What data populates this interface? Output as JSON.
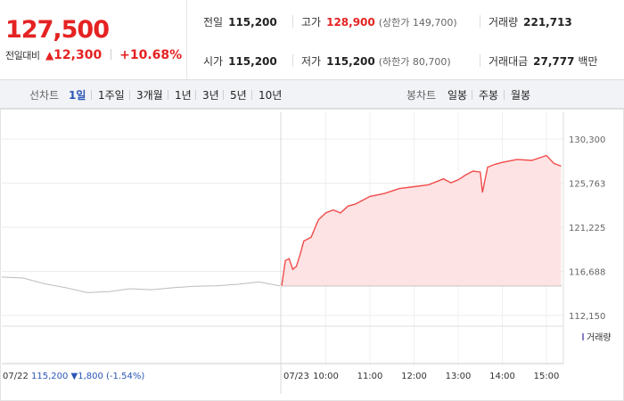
{
  "header": {
    "current_price": "127,500",
    "change_label": "전일대비",
    "change_arrow": "▲",
    "change_amount": "12,300",
    "change_rate": "+10.68%",
    "stats": {
      "prev_close": {
        "label": "전일",
        "value": "115,200"
      },
      "high": {
        "label": "고가",
        "value": "128,900",
        "sub": "(상한가 149,700)"
      },
      "volume": {
        "label": "거래량",
        "value": "221,713"
      },
      "open": {
        "label": "시가",
        "value": "115,200"
      },
      "low": {
        "label": "저가",
        "value": "115,200",
        "sub": "(하한가 80,700)"
      },
      "turnover": {
        "label": "거래대금",
        "value": "27,777",
        "unit": "백만"
      }
    }
  },
  "tabs": {
    "line_label": "선차트",
    "line_periods": [
      "1일",
      "1주일",
      "3개월",
      "1년",
      "3년",
      "5년",
      "10년"
    ],
    "active_period": "1일",
    "candle_label": "봉차트",
    "candle_periods": [
      "일봉",
      "주봉",
      "월봉"
    ]
  },
  "chart_data": {
    "type": "line",
    "y_ticks": [
      "130,300",
      "125,763",
      "121,225",
      "116,688",
      "112,150"
    ],
    "ylim": [
      112150,
      130300
    ],
    "prev_close_level": 115200,
    "x_ticks": [
      "10:00",
      "11:00",
      "12:00",
      "13:00",
      "14:00",
      "15:00"
    ],
    "prev_day": {
      "date": "07/22",
      "close": "115,200",
      "change_arrow": "▼",
      "change": "1,800",
      "rate": "(-1.54%)",
      "x": [
        "09:00",
        "09:30",
        "10:00",
        "10:30",
        "11:00",
        "11:30",
        "12:00",
        "12:30",
        "13:00",
        "13:30",
        "14:00",
        "14:30",
        "15:00",
        "15:30"
      ],
      "y": [
        116100,
        116000,
        115400,
        115000,
        114500,
        114600,
        114900,
        114800,
        115000,
        115150,
        115200,
        115350,
        115600,
        115200
      ]
    },
    "today": {
      "date": "07/23",
      "x": [
        "09:00",
        "09:05",
        "09:10",
        "09:15",
        "09:20",
        "09:25",
        "09:30",
        "09:40",
        "09:50",
        "10:00",
        "10:10",
        "10:20",
        "10:30",
        "10:40",
        "10:50",
        "11:00",
        "11:20",
        "11:40",
        "12:00",
        "12:20",
        "12:40",
        "12:50",
        "13:00",
        "13:10",
        "13:20",
        "13:30",
        "13:33",
        "13:40",
        "13:50",
        "14:00",
        "14:20",
        "14:40",
        "15:00",
        "15:10",
        "15:20"
      ],
      "y": [
        115200,
        117800,
        118000,
        116900,
        117200,
        118400,
        119800,
        120200,
        122000,
        122700,
        123000,
        122700,
        123400,
        123600,
        124000,
        124400,
        124700,
        125200,
        125400,
        125600,
        126200,
        125800,
        126100,
        126600,
        127000,
        126900,
        124800,
        127400,
        127700,
        127900,
        128200,
        128100,
        128600,
        127800,
        127500
      ]
    },
    "volume_label": "거래량"
  }
}
